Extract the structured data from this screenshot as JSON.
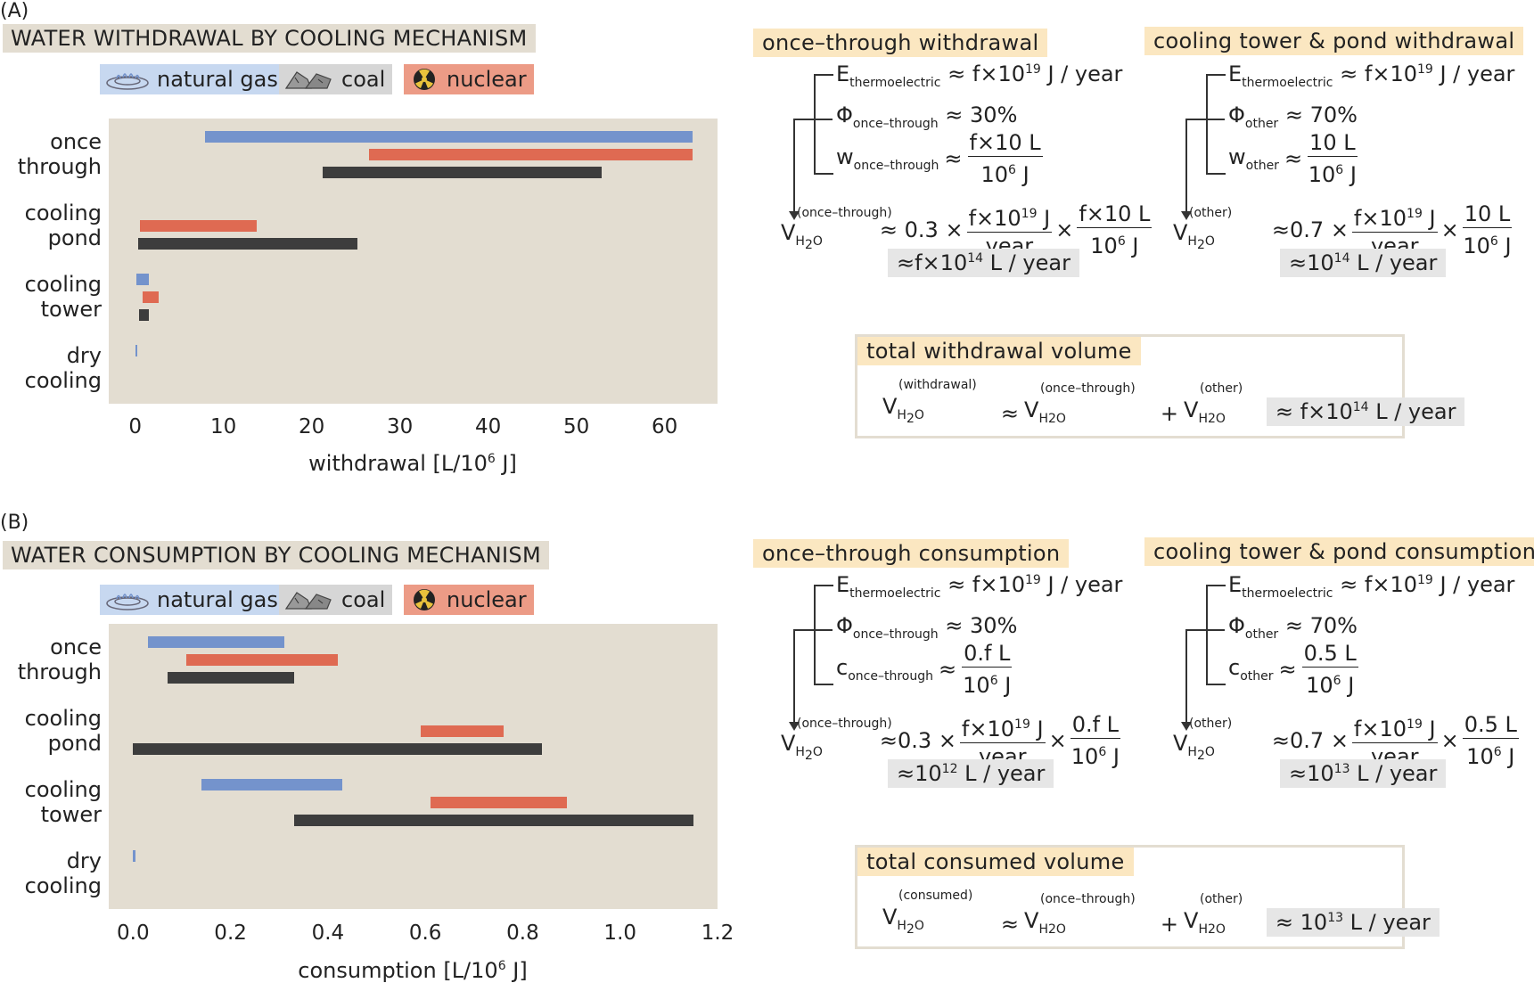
{
  "panels": [
    {
      "label": "(A)",
      "title": "WATER WITHDRAWAL BY COOLING MECHANISM",
      "legend": [
        {
          "label": "natural gas",
          "icon": "gas-burner-icon",
          "color": "#7493cc"
        },
        {
          "label": "coal",
          "icon": "coal-icon",
          "color": "#3d3d3d"
        },
        {
          "label": "nuclear",
          "icon": "radiation-icon",
          "color": "#df6a52"
        }
      ],
      "boxes": {
        "once": {
          "title": "once–through withdrawal",
          "e_lhs": "E",
          "e_sub": "thermoelectric",
          "e_rhs": "≈ f×10",
          "e_exp": "19",
          "e_unit": " J / year",
          "phi_lhs": "Φ",
          "phi_sub": "once–through",
          "phi_rhs": "≈ 30%",
          "w_lhs": "w",
          "w_sub": "once–through",
          "w_num": "f×10 L",
          "w_den": "10",
          "w_den_exp": "6",
          "w_den_unit": " J",
          "v_sup": "(once–through)",
          "v_coef": "≈ 0.3 ×",
          "f1_num": "f×10",
          "f1_num_exp": "19",
          "f1_num_unit": " J",
          "f1_den": "year",
          "f2_num": "f×10 L",
          "f2_den": "10",
          "f2_den_exp": "6",
          "f2_den_unit": " J",
          "result": "≈f×10",
          "result_exp": "14",
          "result_unit": " L / year"
        },
        "other": {
          "title": "cooling tower & pond withdrawal",
          "e_lhs": "E",
          "e_sub": "thermoelectric",
          "e_rhs": "≈ f×10",
          "e_exp": "19",
          "e_unit": " J / year",
          "phi_lhs": "Φ",
          "phi_sub": "other",
          "phi_rhs": "≈ 70%",
          "w_lhs": "w",
          "w_sub": "other",
          "w_num": "10 L",
          "w_den": "10",
          "w_den_exp": "6",
          "w_den_unit": " J",
          "v_sup": "(other)",
          "v_coef": "≈0.7 ×",
          "f1_num": "f×10",
          "f1_num_exp": "19",
          "f1_num_unit": " J",
          "f1_den": "year",
          "f2_num": "10 L",
          "f2_den": "10",
          "f2_den_exp": "6",
          "f2_den_unit": " J",
          "result": "≈10",
          "result_exp": "14",
          "result_unit": " L / year"
        },
        "total": {
          "title": "total withdrawal volume",
          "lhs_sup": "(withdrawal)",
          "t1_sup": "(once–through)",
          "t2_sup": "(other)",
          "result": "≈ f×10",
          "result_exp": "14",
          "result_unit": " L / year"
        }
      }
    },
    {
      "label": "(B)",
      "title": "WATER CONSUMPTION BY COOLING MECHANISM",
      "legend": [
        {
          "label": "natural gas",
          "icon": "gas-burner-icon",
          "color": "#7493cc"
        },
        {
          "label": "coal",
          "icon": "coal-icon",
          "color": "#3d3d3d"
        },
        {
          "label": "nuclear",
          "icon": "radiation-icon",
          "color": "#df6a52"
        }
      ],
      "boxes": {
        "once": {
          "title": "once–through consumption",
          "e_lhs": "E",
          "e_sub": "thermoelectric",
          "e_rhs": "≈ f×10",
          "e_exp": "19",
          "e_unit": " J / year",
          "phi_lhs": "Φ",
          "phi_sub": "once–through",
          "phi_rhs": "≈ 30%",
          "w_lhs": "c",
          "w_sub": "once–through",
          "w_num": "0.f L",
          "w_den": "10",
          "w_den_exp": "6",
          "w_den_unit": " J",
          "v_sup": "(once–through)",
          "v_coef": "≈0.3 ×",
          "f1_num": "f×10",
          "f1_num_exp": "19",
          "f1_num_unit": " J",
          "f1_den": "year",
          "f2_num": "0.f L",
          "f2_den": "10",
          "f2_den_exp": "6",
          "f2_den_unit": " J",
          "result": "≈10",
          "result_exp": "12",
          "result_unit": " L / year"
        },
        "other": {
          "title": "cooling tower & pond consumption",
          "e_lhs": "E",
          "e_sub": "thermoelectric",
          "e_rhs": "≈ f×10",
          "e_exp": "19",
          "e_unit": " J / year",
          "phi_lhs": "Φ",
          "phi_sub": "other",
          "phi_rhs": "≈ 70%",
          "w_lhs": "c",
          "w_sub": "other",
          "w_num": "0.5 L",
          "w_den": "10",
          "w_den_exp": "6",
          "w_den_unit": " J",
          "v_sup": "(other)",
          "v_coef": "≈0.7 ×",
          "f1_num": "f×10",
          "f1_num_exp": "19",
          "f1_num_unit": " J",
          "f1_den": "year",
          "f2_num": "0.5 L",
          "f2_den": "10",
          "f2_den_exp": "6",
          "f2_den_unit": " J",
          "result": "≈10",
          "result_exp": "13",
          "result_unit": " L / year"
        },
        "total": {
          "title": "total consumed volume",
          "lhs_sup": "(consumed)",
          "t1_sup": "(once–through)",
          "t2_sup": "(other)",
          "result": "≈ 10",
          "result_exp": "13",
          "result_unit": " L / year"
        }
      }
    }
  ],
  "common": {
    "V": "V",
    "H2O_main": "H",
    "H2O_two": "2",
    "H2O_O": "O",
    "H2O_flat": "H2O",
    "approx": "≈",
    "plus": "+",
    "times": "×"
  },
  "chart_data": [
    {
      "type": "bar",
      "orientation": "horizontal-range",
      "categories": [
        "once\nthrough",
        "cooling\npond",
        "cooling\ntower",
        "dry\ncooling"
      ],
      "category_labels": [
        [
          "once",
          "through"
        ],
        [
          "cooling",
          "pond"
        ],
        [
          "cooling",
          "tower"
        ],
        [
          "dry",
          "cooling"
        ]
      ],
      "xlabel": "withdrawal [L/10",
      "xlabel_exp": "6",
      "xlabel_tail": " J]",
      "xlim": [
        -3,
        66
      ],
      "xticks": [
        0,
        10,
        20,
        30,
        40,
        50,
        60
      ],
      "xtick_labels": [
        "0",
        "10",
        "20",
        "30",
        "40",
        "50",
        "60"
      ],
      "series": [
        {
          "name": "natural gas",
          "color": "#7493cc",
          "ranges": [
            [
              7.9,
              63.2
            ],
            null,
            [
              0.1,
              1.5
            ],
            [
              0.0,
              0.1
            ]
          ]
        },
        {
          "name": "nuclear",
          "color": "#df6a52",
          "ranges": [
            [
              26.5,
              63.2
            ],
            [
              0.5,
              13.8
            ],
            [
              0.8,
              2.7
            ],
            null
          ]
        },
        {
          "name": "coal",
          "color": "#3d3d3d",
          "ranges": [
            [
              21.2,
              52.9
            ],
            [
              0.3,
              25.2
            ],
            [
              0.4,
              1.5
            ],
            null
          ]
        }
      ]
    },
    {
      "type": "bar",
      "orientation": "horizontal-range",
      "categories": [
        "once\nthrough",
        "cooling\npond",
        "cooling\ntower",
        "dry\ncooling"
      ],
      "category_labels": [
        [
          "once",
          "through"
        ],
        [
          "cooling",
          "pond"
        ],
        [
          "cooling",
          "tower"
        ],
        [
          "dry",
          "cooling"
        ]
      ],
      "xlabel": "consumption [L/10",
      "xlabel_exp": "6",
      "xlabel_tail": " J]",
      "xlim": [
        -0.05,
        1.2
      ],
      "xticks": [
        0.0,
        0.2,
        0.4,
        0.6,
        0.8,
        1.0,
        1.2
      ],
      "xtick_labels": [
        "0.0",
        "0.2",
        "0.4",
        "0.6",
        "0.8",
        "1.0",
        "1.2"
      ],
      "series": [
        {
          "name": "natural gas",
          "color": "#7493cc",
          "ranges": [
            [
              0.03,
              0.31
            ],
            null,
            [
              0.14,
              0.43
            ],
            [
              0.0,
              0.005
            ]
          ]
        },
        {
          "name": "nuclear",
          "color": "#df6a52",
          "ranges": [
            [
              0.11,
              0.42
            ],
            [
              0.59,
              0.76
            ],
            [
              0.61,
              0.89
            ],
            null
          ]
        },
        {
          "name": "coal",
          "color": "#3d3d3d",
          "ranges": [
            [
              0.07,
              0.33
            ],
            [
              0.0,
              0.84
            ],
            [
              0.33,
              1.15
            ],
            null
          ]
        }
      ]
    }
  ]
}
